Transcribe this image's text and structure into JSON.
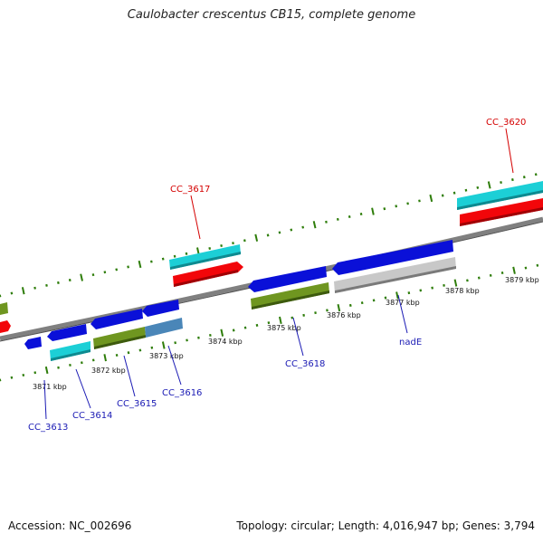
{
  "title": "Caulobacter crescentus CB15, complete genome",
  "footer": {
    "accession": "Accession: NC_002696",
    "summary": "Topology: circular; Length: 4,016,947 bp; Genes: 3,794"
  },
  "colors": {
    "backbone": "#808080",
    "tick": "#2e7d0a",
    "forward_gene_label": "#d40000",
    "reverse_gene_label": "#1a1ab4",
    "blue_feature": "#0a10d8",
    "cyan_feature": "#1ccfd6",
    "red_feature": "#f2060a",
    "olive_feature": "#6f9620",
    "steel_feature": "#4a86b8",
    "grey_feature": "#c8c8c8"
  },
  "map": {
    "kbp_labels": [
      "3871 kbp",
      "3872 kbp",
      "3873 kbp",
      "3874 kbp",
      "3875 kbp",
      "3876 kbp",
      "3877 kbp",
      "3878 kbp",
      "3879 kbp"
    ],
    "forward_gene_labels": [
      "CC_3617",
      "CC_3620"
    ],
    "reverse_gene_labels": [
      "CC_3613",
      "CC_3614",
      "CC_3615",
      "CC_3616",
      "CC_3618",
      "nadE"
    ]
  }
}
